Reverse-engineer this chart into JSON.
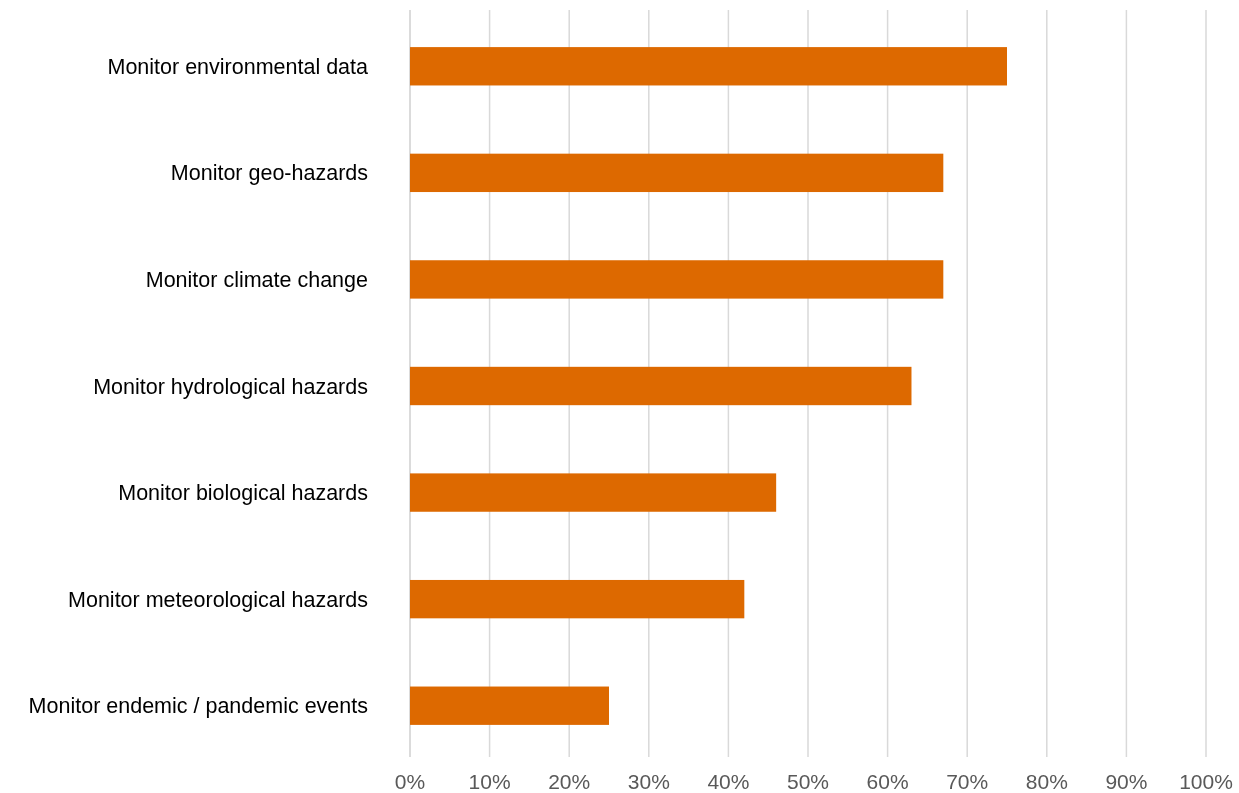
{
  "chart_data": {
    "type": "bar",
    "orientation": "horizontal",
    "categories": [
      "Monitor environmental data",
      "Monitor geo-hazards",
      "Monitor climate change",
      "Monitor hydrological hazards",
      "Monitor biological hazards",
      "Monitor meteorological hazards",
      "Monitor endemic / pandemic events"
    ],
    "values": [
      75,
      67,
      67,
      63,
      46,
      42,
      25
    ],
    "color": "#dd6900",
    "xlim": [
      0,
      100
    ],
    "xticks": [
      {
        "value": 0,
        "label": "0%"
      },
      {
        "value": 10,
        "label": "10%"
      },
      {
        "value": 20,
        "label": "20%"
      },
      {
        "value": 30,
        "label": "30%"
      },
      {
        "value": 40,
        "label": "40%"
      },
      {
        "value": 50,
        "label": "50%"
      },
      {
        "value": 60,
        "label": "60%"
      },
      {
        "value": 70,
        "label": "70%"
      },
      {
        "value": 80,
        "label": "80%"
      },
      {
        "value": 90,
        "label": "90%"
      },
      {
        "value": 100,
        "label": "100%"
      }
    ],
    "grid": "x"
  }
}
